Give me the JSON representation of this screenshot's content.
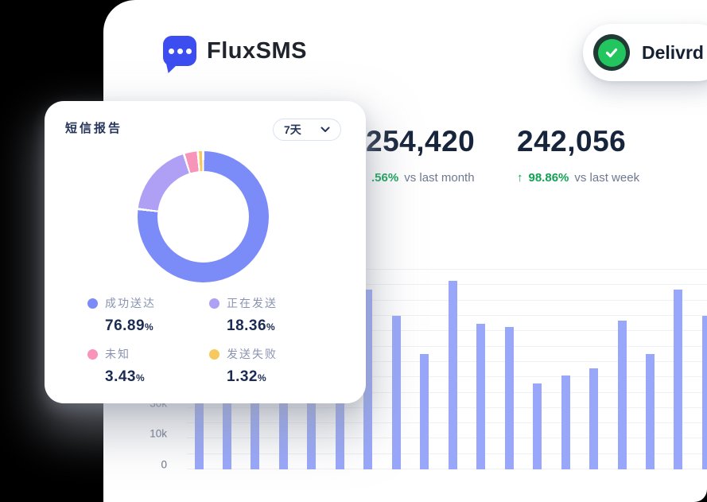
{
  "brand": {
    "name": "FluxSMS",
    "logo_color": "#3D4EF1",
    "text_color": "#20242D"
  },
  "status_badge": {
    "label": "Delivrd",
    "circle_color": "#22C55E",
    "ring_color": "#203A35"
  },
  "stats": [
    {
      "value": "254,420",
      "arrow": "",
      "delta": ".56%",
      "period": "vs last month"
    },
    {
      "value": "242,056",
      "arrow": "↑",
      "delta": "98.86%",
      "period": "vs last week"
    }
  ],
  "report_card": {
    "title": "短信报告",
    "range_label": "7天",
    "legend": [
      {
        "label": "成功送达",
        "value": "76.89",
        "unit": "%"
      },
      {
        "label": "正在发送",
        "value": "18.36",
        "unit": "%"
      },
      {
        "label": "未知",
        "value": "3.43",
        "unit": "%"
      },
      {
        "label": "发送失败",
        "value": "1.32",
        "unit": "%"
      }
    ]
  },
  "colors": {
    "accent_blue": "#3D4EF1",
    "positive_green": "#13A155",
    "bar_fill": "#98A7FA",
    "number_ink": "#17253C"
  },
  "chart_data": [
    {
      "type": "pie",
      "donut": true,
      "title": "短信报告",
      "labels": [
        "成功送达",
        "正在发送",
        "未知",
        "发送失败"
      ],
      "values": [
        76.89,
        18.36,
        3.43,
        1.32
      ],
      "colors": [
        "#7B8BF7",
        "#AFA0F6",
        "#F893B9",
        "#F6C95F"
      ],
      "start_angle_deg": 1,
      "legend_position": "bottom-grid"
    },
    {
      "type": "bar",
      "title": "",
      "xlabel": "",
      "ylabel": "",
      "values": [
        52000,
        46000,
        49500,
        43000,
        54000,
        47500,
        58500,
        50000,
        37500,
        61500,
        47500,
        46500,
        28000,
        30500,
        33000,
        48500,
        37500,
        58500,
        50000
      ],
      "bar_color": "#98A7FA",
      "ylim": [
        0,
        65000
      ],
      "ytick_labels": [
        "0",
        "10k",
        "30k"
      ],
      "ytick_lines": [
        0,
        2,
        4
      ],
      "grid": true
    }
  ]
}
